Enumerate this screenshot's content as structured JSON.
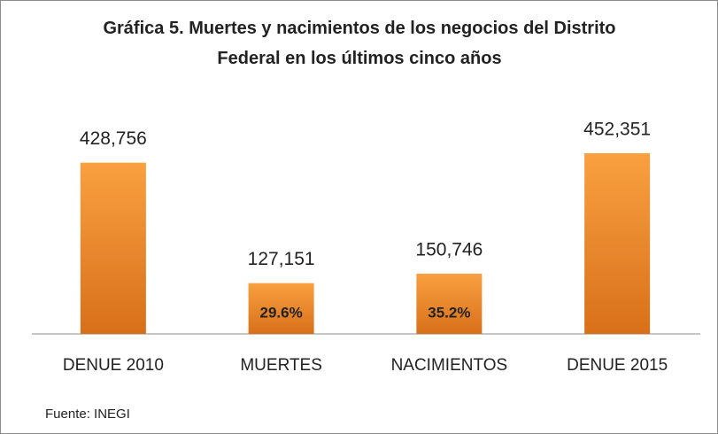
{
  "chart_data": {
    "type": "bar",
    "title": "Gráfica 5. Muertes y nacimientos de los negocios del Distrito Federal en los últimos cinco años",
    "categories": [
      "DENUE 2010",
      "MUERTES",
      "NACIMIENTOS",
      "DENUE 2015"
    ],
    "values": [
      428756,
      127151,
      150746,
      452351
    ],
    "value_labels": [
      "428,756",
      "127,151",
      "150,746",
      "452,351"
    ],
    "inner_labels": [
      null,
      "29.6%",
      "35.2%",
      null
    ],
    "color": "#f08a2a",
    "source": "Fuente: INEGI"
  }
}
